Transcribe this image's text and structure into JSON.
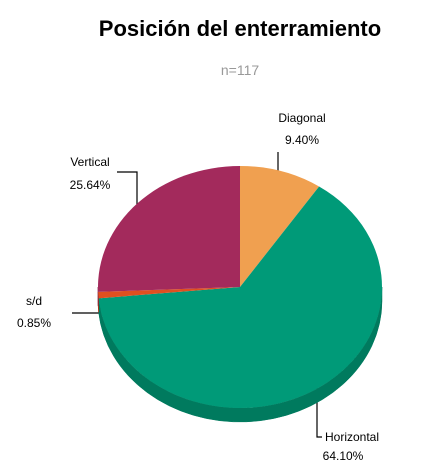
{
  "chart_data": {
    "type": "pie",
    "title": "Posición del enterramiento",
    "subtitle": "n=117",
    "categories": [
      "Diagonal",
      "Horizontal",
      "s/d",
      "Vertical"
    ],
    "values": [
      9.4,
      64.1,
      0.85,
      25.64
    ],
    "value_labels": [
      "9.40%",
      "64.10%",
      "0.85%",
      "25.64%"
    ],
    "colors": [
      "#f0a050",
      "#009a78",
      "#e05020",
      "#a32a5c"
    ],
    "side_colors": [
      "#c88030",
      "#007a5e",
      "#b03010",
      "#7a1a40"
    ]
  }
}
